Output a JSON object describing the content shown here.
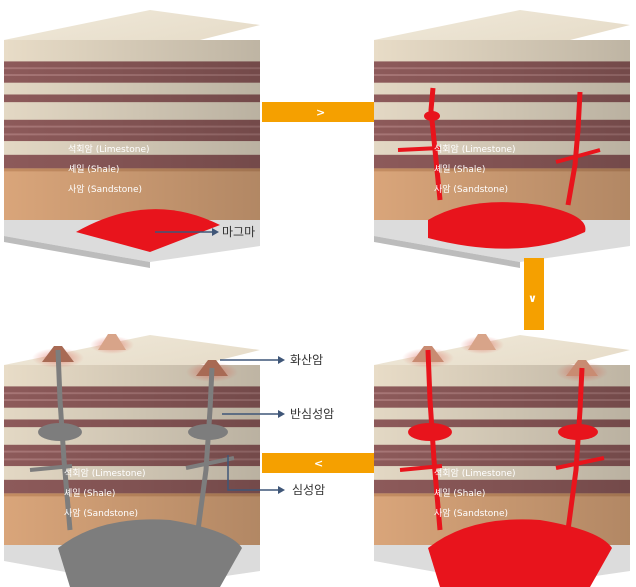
{
  "layers": {
    "limestone": "석회암 (Limestone)",
    "shale": "셰일 (Shale)",
    "sandstone": "사암 (Sandstone)"
  },
  "labels": {
    "magma": "마그마",
    "volcanic": "화산암",
    "hypabyssal": "반심성암",
    "plutonic": "심성암"
  },
  "arrows": {
    "right": ">",
    "down": "∨",
    "left": "<"
  },
  "colors": {
    "magma": "#e8141c",
    "cooled_rock": "#7d7d7d",
    "arrow": "#f5a000",
    "top_sand": "#eee6d6",
    "sandstone": "#d9a57a",
    "shale": "#8d5a5a",
    "limestone": "#e3d8c4",
    "callout_line": "#3f5678"
  }
}
